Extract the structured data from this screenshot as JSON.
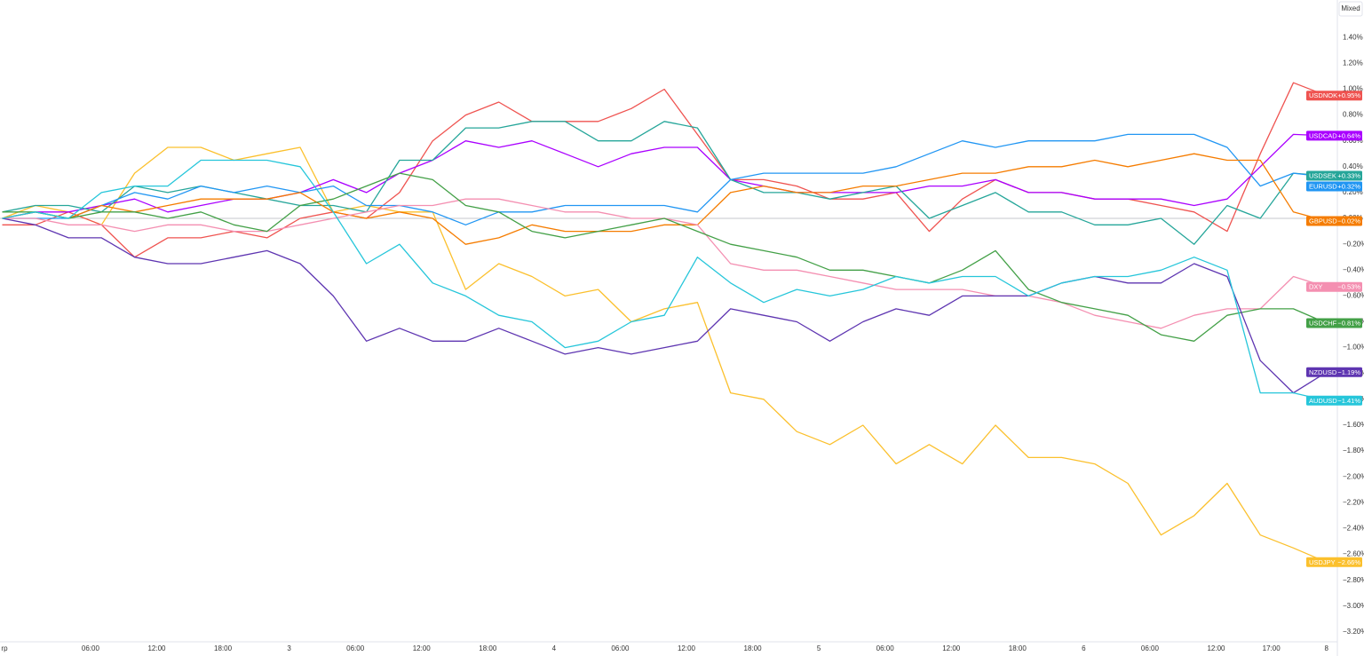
{
  "chart_data": {
    "type": "line",
    "button": "Mixed",
    "x": [
      -2,
      1,
      4,
      7,
      10,
      13,
      16,
      19,
      22,
      25,
      28,
      31,
      34,
      37,
      40,
      43,
      46,
      49,
      52,
      55,
      58,
      61,
      64,
      67,
      70,
      73,
      76,
      79,
      82,
      85,
      88,
      91,
      94,
      97,
      100,
      103,
      106,
      109,
      112,
      115,
      118
    ],
    "xlim": [
      -2.2,
      118.5
    ],
    "xticks": [
      {
        "value": -1.8,
        "label": "rp"
      },
      {
        "value": 6,
        "label": "06:00"
      },
      {
        "value": 12,
        "label": "12:00"
      },
      {
        "value": 18,
        "label": "18:00"
      },
      {
        "value": 24,
        "label": "3"
      },
      {
        "value": 30,
        "label": "06:00"
      },
      {
        "value": 36,
        "label": "12:00"
      },
      {
        "value": 42,
        "label": "18:00"
      },
      {
        "value": 48,
        "label": "4"
      },
      {
        "value": 54,
        "label": "06:00"
      },
      {
        "value": 60,
        "label": "12:00"
      },
      {
        "value": 66,
        "label": "18:00"
      },
      {
        "value": 72,
        "label": "5"
      },
      {
        "value": 78,
        "label": "06:00"
      },
      {
        "value": 84,
        "label": "12:00"
      },
      {
        "value": 90,
        "label": "18:00"
      },
      {
        "value": 96,
        "label": "6"
      },
      {
        "value": 102,
        "label": "06:00"
      },
      {
        "value": 108,
        "label": "12:00"
      },
      {
        "value": 113,
        "label": "17:00"
      },
      {
        "value": 118,
        "label": "8"
      }
    ],
    "ylim": [
      -3.29,
      1.69
    ],
    "yticks": [
      {
        "value": 1.4,
        "label": "1.40%"
      },
      {
        "value": 1.2,
        "label": "1.20%"
      },
      {
        "value": 1.0,
        "label": "1.00%"
      },
      {
        "value": 0.8,
        "label": "0.80%"
      },
      {
        "value": 0.6,
        "label": "0.60%"
      },
      {
        "value": 0.4,
        "label": "0.40%"
      },
      {
        "value": 0.2,
        "label": "0.20%"
      },
      {
        "value": 0,
        "label": "0.00%"
      },
      {
        "value": -0.2,
        "label": "−0.20%"
      },
      {
        "value": -0.4,
        "label": "−0.40%"
      },
      {
        "value": -0.6,
        "label": "−0.60%"
      },
      {
        "value": -0.8,
        "label": "−0.80%"
      },
      {
        "value": -1.0,
        "label": "−1.00%"
      },
      {
        "value": -1.2,
        "label": "−1.20%"
      },
      {
        "value": -1.4,
        "label": "−1.40%"
      },
      {
        "value": -1.6,
        "label": "−1.60%"
      },
      {
        "value": -1.8,
        "label": "−1.80%"
      },
      {
        "value": -2.0,
        "label": "−2.00%"
      },
      {
        "value": -2.2,
        "label": "−2.20%"
      },
      {
        "value": -2.4,
        "label": "−2.40%"
      },
      {
        "value": -2.6,
        "label": "−2.60%"
      },
      {
        "value": -2.8,
        "label": "−2.80%"
      },
      {
        "value": -3.0,
        "label": "−3.00%"
      },
      {
        "value": -3.2,
        "label": "−3.20%"
      }
    ],
    "series": [
      {
        "name": "USDJPY",
        "color": "#fbc02d",
        "last": {
          "value": -2.66,
          "label": "−2.66%"
        },
        "values": [
          0,
          0.1,
          0.05,
          -0.05,
          0.35,
          0.55,
          0.55,
          0.45,
          0.5,
          0.55,
          0.05,
          0.1,
          0.05,
          0.05,
          -0.55,
          -0.35,
          -0.45,
          -0.6,
          -0.55,
          -0.8,
          -0.7,
          -0.65,
          -1.35,
          -1.4,
          -1.65,
          -1.75,
          -1.6,
          -1.9,
          -1.75,
          -1.9,
          -1.6,
          -1.85,
          -1.85,
          -1.9,
          -2.05,
          -2.45,
          -2.3,
          -2.05,
          -2.45,
          -2.55,
          -2.66
        ]
      },
      {
        "name": "USDNOK",
        "color": "#ef5350",
        "last": {
          "value": 0.95,
          "label": "+0.95%"
        },
        "values": [
          -0.05,
          -0.05,
          0.05,
          -0.05,
          -0.3,
          -0.15,
          -0.15,
          -0.1,
          -0.15,
          0,
          0.05,
          0,
          0.2,
          0.6,
          0.8,
          0.9,
          0.75,
          0.75,
          0.75,
          0.85,
          1.0,
          0.65,
          0.3,
          0.3,
          0.25,
          0.15,
          0.15,
          0.2,
          -0.1,
          0.15,
          0.3,
          0.2,
          0.2,
          0.15,
          0.15,
          0.1,
          0.05,
          -0.1,
          0.5,
          1.05,
          0.95
        ]
      },
      {
        "name": "USDCAD",
        "color": "#aa00ff",
        "last": {
          "value": 0.64,
          "label": "+0.64%"
        },
        "values": [
          0,
          0.05,
          0.05,
          0.1,
          0.15,
          0.05,
          0.1,
          0.15,
          0.15,
          0.2,
          0.3,
          0.2,
          0.35,
          0.45,
          0.6,
          0.55,
          0.6,
          0.5,
          0.4,
          0.5,
          0.55,
          0.55,
          0.3,
          0.25,
          0.2,
          0.2,
          0.2,
          0.2,
          0.25,
          0.25,
          0.3,
          0.2,
          0.2,
          0.15,
          0.15,
          0.15,
          0.1,
          0.15,
          0.4,
          0.65,
          0.64
        ]
      },
      {
        "name": "USDSEK",
        "color": "#26a69a",
        "last": {
          "value": 0.33,
          "label": "+0.33%"
        },
        "values": [
          0.05,
          0.1,
          0.1,
          0.05,
          0.25,
          0.2,
          0.25,
          0.2,
          0.15,
          0.1,
          0.1,
          0.05,
          0.45,
          0.45,
          0.7,
          0.7,
          0.75,
          0.75,
          0.6,
          0.6,
          0.75,
          0.7,
          0.3,
          0.2,
          0.2,
          0.15,
          0.2,
          0.25,
          0,
          0.1,
          0.2,
          0.05,
          0.05,
          -0.05,
          -0.05,
          0,
          -0.2,
          0.1,
          0,
          0.35,
          0.33
        ]
      },
      {
        "name": "EURUSD",
        "color": "#2196f3",
        "last": {
          "value": 0.32,
          "label": "+0.32%"
        },
        "values": [
          0,
          0,
          0,
          0.1,
          0.2,
          0.15,
          0.25,
          0.2,
          0.25,
          0.2,
          0.25,
          0.1,
          0.1,
          0.05,
          -0.05,
          0.05,
          0.05,
          0.1,
          0.1,
          0.1,
          0.1,
          0.05,
          0.3,
          0.35,
          0.35,
          0.35,
          0.35,
          0.4,
          0.5,
          0.6,
          0.55,
          0.6,
          0.6,
          0.6,
          0.65,
          0.65,
          0.65,
          0.55,
          0.25,
          0.35,
          0.32
        ]
      },
      {
        "name": "GBPUSD",
        "color": "#f57c00",
        "last": {
          "value": -0.02,
          "label": "−0.02%"
        },
        "values": [
          0,
          0.05,
          0,
          0.1,
          0.05,
          0.1,
          0.15,
          0.15,
          0.15,
          0.2,
          0.05,
          0,
          0.05,
          0,
          -0.2,
          -0.15,
          -0.05,
          -0.1,
          -0.1,
          -0.1,
          -0.05,
          -0.05,
          0.2,
          0.25,
          0.2,
          0.2,
          0.25,
          0.25,
          0.3,
          0.35,
          0.35,
          0.4,
          0.4,
          0.45,
          0.4,
          0.45,
          0.5,
          0.45,
          0.45,
          0.05,
          -0.02
        ]
      },
      {
        "name": "DXY",
        "color": "#f48fb1",
        "last": {
          "value": -0.53,
          "label": "−0.53%"
        },
        "values": [
          0,
          0,
          -0.05,
          -0.05,
          -0.1,
          -0.05,
          -0.05,
          -0.1,
          -0.1,
          -0.05,
          0,
          0.05,
          0.1,
          0.1,
          0.15,
          0.15,
          0.1,
          0.05,
          0.05,
          0,
          0,
          -0.05,
          -0.35,
          -0.4,
          -0.4,
          -0.45,
          -0.5,
          -0.55,
          -0.55,
          -0.55,
          -0.6,
          -0.6,
          -0.65,
          -0.75,
          -0.8,
          -0.85,
          -0.75,
          -0.7,
          -0.7,
          -0.45,
          -0.53
        ]
      },
      {
        "name": "USDCHF",
        "color": "#43a047",
        "last": {
          "value": -0.81,
          "label": "−0.81%"
        },
        "values": [
          0.05,
          0.05,
          0,
          0.05,
          0.05,
          0,
          0.05,
          -0.05,
          -0.1,
          0.1,
          0.15,
          0.25,
          0.35,
          0.3,
          0.1,
          0.05,
          -0.1,
          -0.15,
          -0.1,
          -0.05,
          0,
          -0.1,
          -0.2,
          -0.25,
          -0.3,
          -0.4,
          -0.4,
          -0.45,
          -0.5,
          -0.4,
          -0.25,
          -0.55,
          -0.65,
          -0.7,
          -0.75,
          -0.9,
          -0.95,
          -0.75,
          -0.7,
          -0.7,
          -0.81
        ]
      },
      {
        "name": "NZDUSD",
        "color": "#5e35b1",
        "last": {
          "value": -1.19,
          "label": "−1.19%"
        },
        "values": [
          0,
          -0.05,
          -0.15,
          -0.15,
          -0.3,
          -0.35,
          -0.35,
          -0.3,
          -0.25,
          -0.35,
          -0.6,
          -0.95,
          -0.85,
          -0.95,
          -0.95,
          -0.85,
          -0.95,
          -1.05,
          -1.0,
          -1.05,
          -1.0,
          -0.95,
          -0.7,
          -0.75,
          -0.8,
          -0.95,
          -0.8,
          -0.7,
          -0.75,
          -0.6,
          -0.6,
          -0.6,
          -0.5,
          -0.45,
          -0.5,
          -0.5,
          -0.35,
          -0.45,
          -1.1,
          -1.35,
          -1.19
        ]
      },
      {
        "name": "AUDUSD",
        "color": "#26c6da",
        "last": {
          "value": -1.41,
          "label": "−1.41%"
        },
        "values": [
          0,
          0.05,
          0,
          0.2,
          0.25,
          0.25,
          0.45,
          0.45,
          0.45,
          0.4,
          0.05,
          -0.35,
          -0.2,
          -0.5,
          -0.6,
          -0.75,
          -0.8,
          -1.0,
          -0.95,
          -0.8,
          -0.75,
          -0.3,
          -0.5,
          -0.65,
          -0.55,
          -0.6,
          -0.55,
          -0.45,
          -0.5,
          -0.45,
          -0.45,
          -0.6,
          -0.5,
          -0.45,
          -0.45,
          -0.4,
          -0.3,
          -0.4,
          -1.35,
          -1.35,
          -1.41
        ]
      }
    ]
  }
}
